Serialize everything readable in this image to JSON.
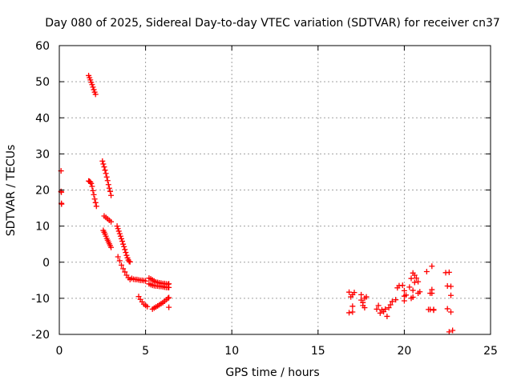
{
  "chart_data": {
    "type": "scatter",
    "title": "Day 080 of 2025, Sidereal Day-to-day VTEC variation (SDTVAR) for receiver cn37",
    "xlabel": "GPS time / hours",
    "ylabel": "SDTVAR / TECUs",
    "xlim": [
      0,
      25
    ],
    "ylim": [
      -20,
      60
    ],
    "xticks": [
      0,
      5,
      10,
      15,
      20,
      25
    ],
    "yticks": [
      -20,
      -10,
      0,
      10,
      20,
      30,
      40,
      50,
      60
    ],
    "grid": true,
    "marker": "+",
    "color": "#ff0000",
    "series": [
      {
        "name": "SDTVAR",
        "x": [
          0.1,
          0.1,
          0.12,
          0.12,
          0.13,
          1.7,
          1.75,
          1.8,
          1.85,
          1.9,
          1.95,
          2.0,
          2.05,
          2.1,
          1.7,
          1.75,
          1.8,
          1.85,
          1.9,
          1.95,
          2.0,
          2.05,
          2.1,
          2.15,
          2.5,
          2.55,
          2.6,
          2.65,
          2.7,
          2.75,
          2.8,
          2.85,
          2.9,
          2.95,
          3.0,
          2.6,
          2.7,
          2.8,
          2.9,
          3.0,
          2.55,
          2.6,
          2.65,
          2.7,
          2.75,
          2.8,
          2.85,
          2.9,
          2.95,
          3.0,
          3.35,
          3.4,
          3.45,
          3.5,
          3.55,
          3.6,
          3.65,
          3.7,
          3.75,
          3.8,
          3.85,
          3.9,
          3.95,
          4.0,
          4.05,
          4.1,
          3.4,
          3.5,
          3.6,
          3.7,
          3.8,
          3.9,
          4.0,
          4.1,
          4.2,
          4.3,
          4.4,
          4.5,
          4.6,
          4.7,
          4.8,
          4.9,
          5.0,
          4.6,
          4.7,
          4.8,
          4.9,
          5.0,
          5.1,
          5.2,
          5.3,
          5.4,
          5.5,
          5.6,
          5.7,
          5.8,
          5.9,
          6.0,
          6.1,
          6.2,
          6.3,
          6.35,
          5.2,
          5.3,
          5.4,
          5.5,
          5.6,
          5.7,
          5.8,
          5.9,
          6.0,
          6.1,
          6.2,
          6.3,
          6.35,
          5.4,
          5.5,
          5.6,
          5.7,
          5.8,
          5.9,
          6.0,
          6.1,
          6.2,
          6.3,
          6.35,
          6.35,
          16.8,
          16.9,
          17.0,
          17.1,
          16.8,
          17.0,
          17.0,
          17.5,
          17.5,
          17.6,
          17.7,
          17.8,
          17.6,
          17.7,
          18.4,
          18.5,
          18.6,
          18.7,
          18.8,
          18.9,
          19.0,
          19.1,
          19.2,
          19.3,
          19.5,
          19.6,
          19.7,
          19.9,
          20.0,
          20.0,
          20.0,
          20.1,
          20.3,
          20.4,
          20.4,
          20.5,
          20.5,
          20.5,
          20.6,
          20.6,
          20.7,
          20.8,
          20.8,
          20.9,
          21.3,
          21.4,
          21.5,
          21.5,
          21.6,
          21.6,
          21.6,
          21.7,
          21.7,
          22.4,
          22.5,
          22.5,
          22.6,
          22.6,
          22.7,
          22.7,
          22.7,
          22.8
        ],
        "y": [
          25.3,
          19.6,
          19.4,
          16.3,
          16.1,
          51.7,
          51.1,
          50.5,
          49.8,
          49.2,
          48.5,
          47.8,
          47.1,
          46.5,
          22.5,
          22.4,
          22.2,
          21.8,
          21.0,
          19.8,
          18.7,
          17.5,
          16.5,
          15.5,
          28.0,
          27.2,
          26.4,
          25.5,
          24.6,
          23.6,
          22.6,
          21.5,
          20.5,
          19.6,
          18.5,
          12.8,
          12.4,
          12.0,
          11.6,
          11.2,
          8.8,
          8.3,
          7.8,
          7.2,
          6.6,
          6.1,
          5.6,
          5.1,
          4.6,
          4.1,
          10.0,
          9.3,
          8.6,
          7.9,
          7.2,
          6.5,
          5.8,
          5.0,
          4.3,
          3.5,
          2.7,
          1.9,
          1.2,
          0.6,
          0.2,
          0.1,
          1.5,
          0.4,
          -0.8,
          -1.8,
          -2.7,
          -3.6,
          -4.3,
          -4.8,
          -4.5,
          -4.7,
          -4.8,
          -4.8,
          -4.9,
          -5.0,
          -5.0,
          -5.1,
          -5.2,
          -9.5,
          -10.3,
          -11.0,
          -11.6,
          -12.0,
          -12.3,
          -4.4,
          -4.6,
          -4.9,
          -5.2,
          -5.5,
          -5.6,
          -5.7,
          -5.8,
          -5.9,
          -5.9,
          -6.0,
          -6.1,
          -6.0,
          -6.0,
          -6.2,
          -6.4,
          -6.5,
          -6.6,
          -6.6,
          -6.7,
          -6.7,
          -6.8,
          -6.9,
          -7.0,
          -7.0,
          -7.0,
          -13.0,
          -12.7,
          -12.4,
          -12.1,
          -11.8,
          -11.5,
          -11.2,
          -10.8,
          -10.4,
          -10.0,
          -9.8,
          -12.5,
          -8.3,
          -9.6,
          -9.0,
          -8.4,
          -14.0,
          -12.2,
          -13.8,
          -9.0,
          -10.5,
          -11.2,
          -10.0,
          -9.6,
          -12.0,
          -12.6,
          -13.0,
          -12.0,
          -14.1,
          -13.2,
          -13.7,
          -13.0,
          -15.0,
          -12.6,
          -11.8,
          -10.9,
          -10.4,
          -7.1,
          -6.5,
          -6.4,
          -7.9,
          -9.4,
          -10.7,
          -9.1,
          -6.9,
          -4.5,
          -10.0,
          -3.0,
          -7.8,
          -9.7,
          -5.6,
          -3.6,
          -4.4,
          -5.4,
          -8.6,
          -8.2,
          -2.6,
          -13.1,
          -13.1,
          -8.6,
          -1.1,
          -7.6,
          -8.6,
          -13.3,
          -13.1,
          -2.9,
          -12.9,
          -6.6,
          -2.8,
          -19.3,
          -6.7,
          -9.2,
          -13.8,
          -18.9
        ]
      }
    ]
  }
}
